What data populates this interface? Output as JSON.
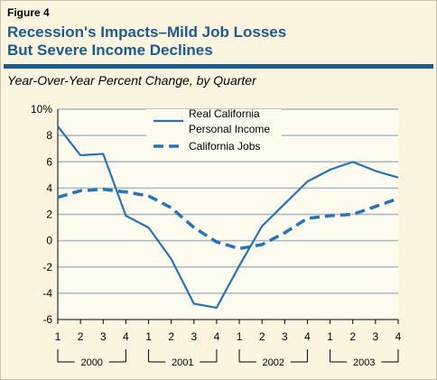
{
  "figure_label": "Figure 4",
  "title_line1": "Recession's Impacts–Mild Job Losses",
  "title_line2": "But Severe Income Declines",
  "subtitle": "Year-Over-Year Percent Change, by Quarter",
  "colors": {
    "accent": "#1f5a8c",
    "line": "#2b72b5",
    "grid": "#a9b6c6",
    "plot_bg": "#fdfaee",
    "page_bg": "#fbf5e0"
  },
  "chart_data": {
    "type": "line",
    "x": [
      "1",
      "2",
      "3",
      "4",
      "1",
      "2",
      "3",
      "4",
      "1",
      "2",
      "3",
      "4",
      "1",
      "2",
      "3",
      "4"
    ],
    "year_groups": [
      "2000",
      "2001",
      "2002",
      "2003"
    ],
    "ylim": [
      -6,
      10
    ],
    "yticks": [
      "10%",
      "8",
      "6",
      "4",
      "2",
      "0",
      "-2",
      "-4",
      "-6"
    ],
    "grid": true,
    "legend_position": "top-center",
    "series": [
      {
        "name": "Real California Personal Income",
        "legend_line1": "Real California",
        "legend_line2": "Personal Income",
        "style": "solid",
        "values": [
          8.7,
          6.5,
          6.6,
          1.9,
          1.0,
          -1.4,
          -4.8,
          -5.1,
          -1.9,
          1.1,
          2.8,
          4.5,
          5.4,
          6.0,
          5.3,
          4.8
        ]
      },
      {
        "name": "California Jobs",
        "legend_line1": "California Jobs",
        "style": "dashed",
        "values": [
          3.3,
          3.8,
          3.9,
          3.7,
          3.4,
          2.5,
          1.0,
          -0.1,
          -0.6,
          -0.3,
          0.6,
          1.7,
          1.9,
          2.0,
          2.6,
          3.2
        ]
      }
    ]
  }
}
